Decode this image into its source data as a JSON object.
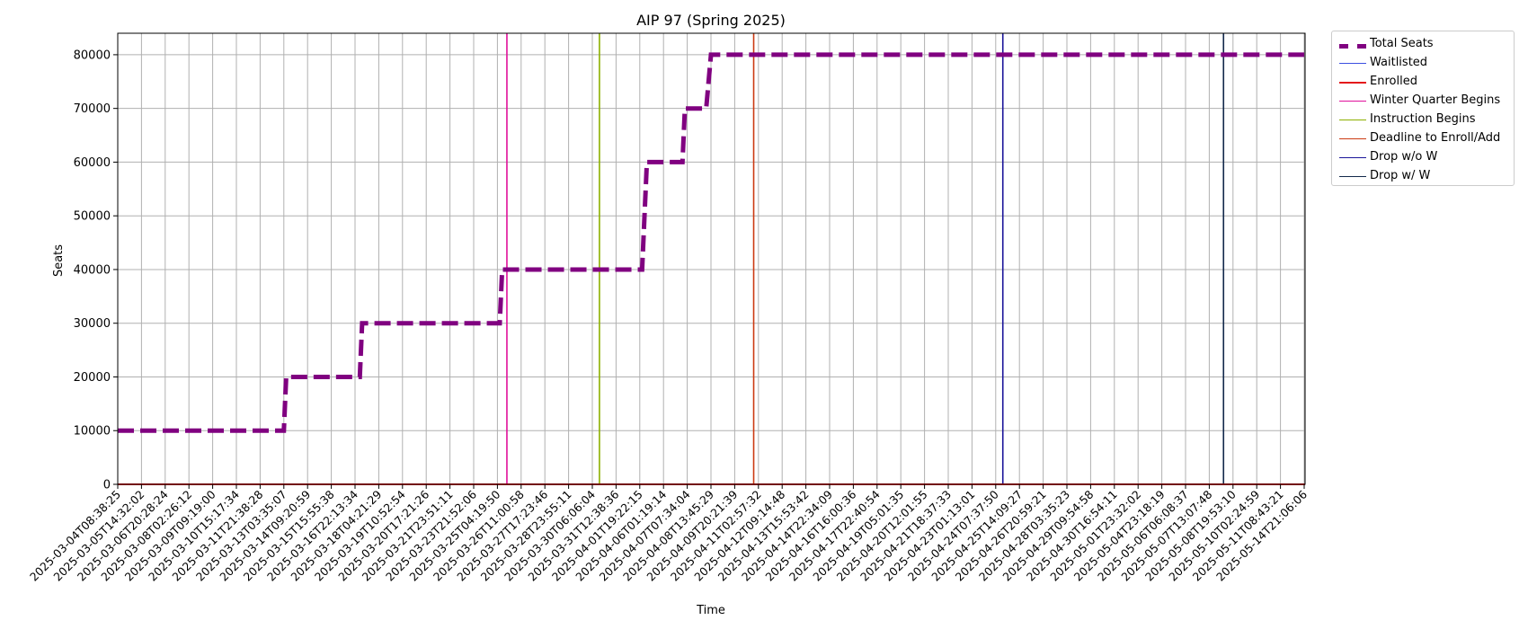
{
  "chart_data": {
    "type": "line",
    "title": "AIP 97 (Spring 2025)",
    "xlabel": "Time",
    "ylabel": "Seats",
    "ylim": [
      0,
      84000
    ],
    "yticks": [
      0,
      10000,
      20000,
      30000,
      40000,
      50000,
      60000,
      70000,
      80000
    ],
    "grid": true,
    "legend_position": "outside-top-right",
    "x_tick_labels": [
      "2025-03-04T08:38:25",
      "2025-03-05T14:32:02",
      "2025-03-06T20:28:24",
      "2025-03-08T02:26:12",
      "2025-03-09T09:19:00",
      "2025-03-10T15:17:34",
      "2025-03-11T21:38:28",
      "2025-03-13T03:35:07",
      "2025-03-14T09:20:59",
      "2025-03-15T15:55:38",
      "2025-03-16T22:13:34",
      "2025-03-18T04:21:29",
      "2025-03-19T10:52:54",
      "2025-03-20T17:21:26",
      "2025-03-21T23:51:11",
      "2025-03-23T21:52:06",
      "2025-03-25T04:19:50",
      "2025-03-26T11:00:58",
      "2025-03-27T17:23:46",
      "2025-03-28T23:55:11",
      "2025-03-30T06:06:04",
      "2025-03-31T12:38:36",
      "2025-04-01T19:22:15",
      "2025-04-06T01:19:14",
      "2025-04-07T07:34:04",
      "2025-04-08T13:45:29",
      "2025-04-09T20:21:39",
      "2025-04-11T02:57:32",
      "2025-04-12T09:14:48",
      "2025-04-13T15:53:42",
      "2025-04-14T22:34:09",
      "2025-04-16T16:00:36",
      "2025-04-17T22:40:54",
      "2025-04-19T05:01:35",
      "2025-04-20T12:01:55",
      "2025-04-21T18:37:33",
      "2025-04-23T01:13:01",
      "2025-04-24T07:37:50",
      "2025-04-25T14:09:27",
      "2025-04-26T20:59:21",
      "2025-04-28T03:35:23",
      "2025-04-29T09:54:58",
      "2025-04-30T16:54:11",
      "2025-05-01T23:32:02",
      "2025-05-04T23:18:19",
      "2025-05-06T06:08:37",
      "2025-05-07T13:07:48",
      "2025-05-08T19:53:10",
      "2025-05-10T02:24:59",
      "2025-05-11T08:43:21",
      "2025-05-14T21:06:06"
    ],
    "series": [
      {
        "name": "Total Seats",
        "color": "#800080",
        "style": "dashed-thick",
        "step_points": [
          {
            "x": 0.0,
            "y": 10000
          },
          {
            "x": 7.0,
            "y": 10000
          },
          {
            "x": 7.1,
            "y": 20000
          },
          {
            "x": 10.2,
            "y": 20000
          },
          {
            "x": 10.3,
            "y": 30000
          },
          {
            "x": 16.1,
            "y": 30000
          },
          {
            "x": 16.2,
            "y": 40000
          },
          {
            "x": 22.1,
            "y": 40000
          },
          {
            "x": 22.3,
            "y": 60000
          },
          {
            "x": 23.8,
            "y": 60000
          },
          {
            "x": 23.9,
            "y": 70000
          },
          {
            "x": 24.8,
            "y": 70000
          },
          {
            "x": 25.0,
            "y": 80000
          },
          {
            "x": 50.0,
            "y": 80000
          }
        ]
      },
      {
        "name": "Waitlisted",
        "color": "#3b4fe0",
        "style": "solid-thin",
        "constant_y": 0
      },
      {
        "name": "Enrolled",
        "color": "#e41a1c",
        "style": "solid-thick",
        "constant_y": 0
      }
    ],
    "vertical_markers": [
      {
        "name": "Winter Quarter Begins",
        "color": "#e0109b",
        "x_index": 16.4
      },
      {
        "name": "Instruction Begins",
        "color": "#8db000",
        "x_index": 20.3
      },
      {
        "name": "Deadline to Enroll/Add",
        "color": "#cc3a12",
        "x_index": 26.8
      },
      {
        "name": "Drop w/o W",
        "color": "#1a1499",
        "x_index": 37.3
      },
      {
        "name": "Drop w/ W",
        "color": "#13294b",
        "x_index": 46.6
      }
    ]
  }
}
